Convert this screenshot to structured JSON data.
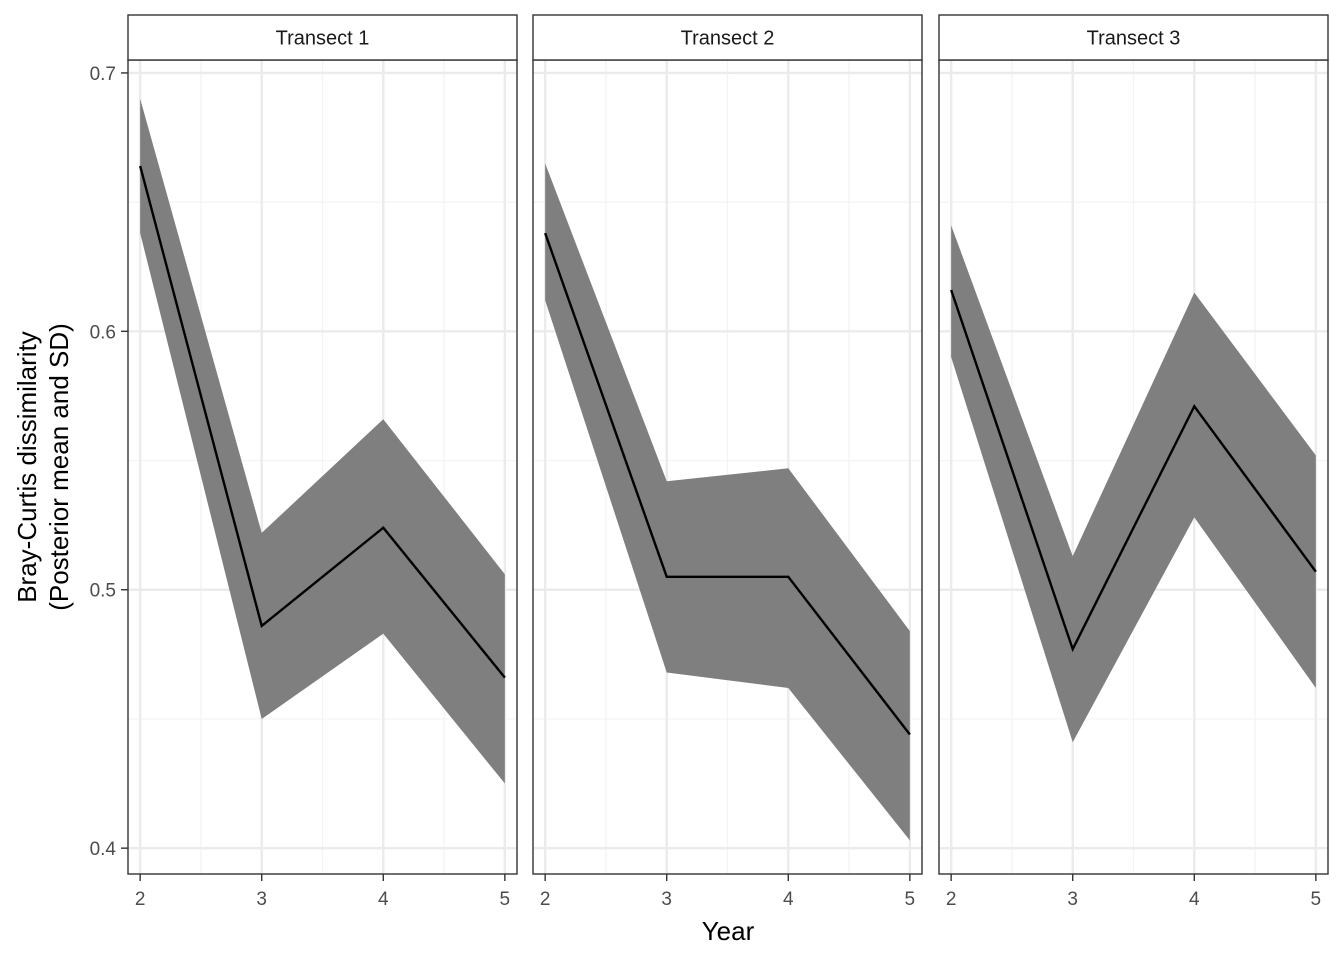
{
  "chart_data": {
    "type": "line",
    "ylabel": [
      "Bray-Curtis dissimilarity",
      "(Posterior mean and SD)"
    ],
    "xlabel": "Year",
    "x_ticks": [
      2,
      3,
      4,
      5
    ],
    "y_ticks": [
      0.4,
      0.5,
      0.6,
      0.7
    ],
    "y_tick_labels": [
      "0.4",
      "0.5",
      "0.6",
      "0.7"
    ],
    "xlim": [
      1.9,
      5.1
    ],
    "ylim": [
      0.39,
      0.705
    ],
    "grid": true,
    "band": "mean ± SD",
    "colors": {
      "line": "#000000",
      "band": "#7f7f7f",
      "panel_border": "#333333",
      "strip_fill": "#ffffff",
      "grid_major": "#ebebeb",
      "grid_minor": "#f3f3f3"
    },
    "panels": [
      {
        "label": "Transect 1",
        "x": [
          2,
          3,
          4,
          5
        ],
        "mean": [
          0.664,
          0.486,
          0.524,
          0.466
        ],
        "upper": [
          0.69,
          0.522,
          0.566,
          0.506
        ],
        "lower": [
          0.638,
          0.45,
          0.483,
          0.425
        ]
      },
      {
        "label": "Transect 2",
        "x": [
          2,
          3,
          4,
          5
        ],
        "mean": [
          0.638,
          0.505,
          0.505,
          0.444
        ],
        "upper": [
          0.665,
          0.542,
          0.547,
          0.484
        ],
        "lower": [
          0.612,
          0.468,
          0.462,
          0.403
        ]
      },
      {
        "label": "Transect 3",
        "x": [
          2,
          3,
          4,
          5
        ],
        "mean": [
          0.616,
          0.477,
          0.571,
          0.507
        ],
        "upper": [
          0.641,
          0.513,
          0.615,
          0.552
        ],
        "lower": [
          0.59,
          0.441,
          0.528,
          0.462
        ]
      }
    ]
  }
}
